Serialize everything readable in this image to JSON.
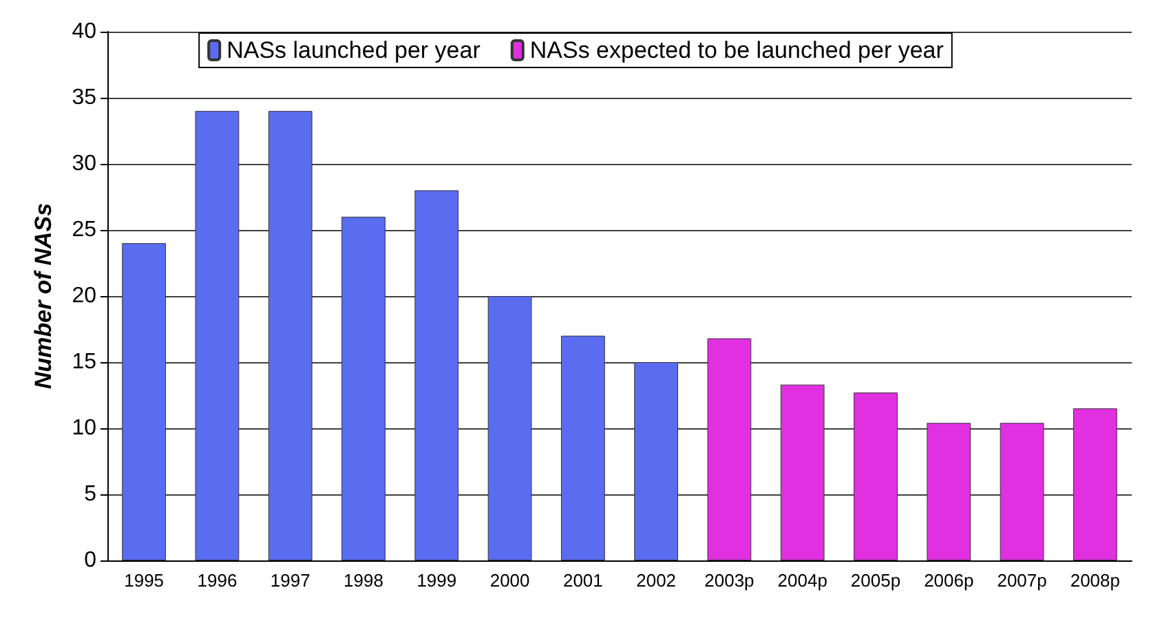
{
  "chart_data": {
    "type": "bar",
    "ylabel": "Number of NASs",
    "categories": [
      "1995",
      "1996",
      "1997",
      "1998",
      "1999",
      "2000",
      "2001",
      "2002",
      "2003p",
      "2004p",
      "2005p",
      "2006p",
      "2007p",
      "2008p"
    ],
    "series": [
      {
        "name": "NASs launched per year",
        "color": "#5a6cf0",
        "values": [
          24,
          34,
          34,
          26,
          28,
          20,
          17,
          15,
          null,
          null,
          null,
          null,
          null,
          null
        ]
      },
      {
        "name": "NASs expected to be launched per year",
        "color": "#e030e0",
        "values": [
          null,
          null,
          null,
          null,
          null,
          null,
          null,
          null,
          16.8,
          13.3,
          12.7,
          10.4,
          10.4,
          11.5
        ]
      }
    ],
    "ylim": [
      0,
      40
    ],
    "yticks": [
      0,
      5,
      10,
      15,
      20,
      25,
      30,
      35,
      40
    ],
    "grid": "y",
    "legend": "top"
  }
}
